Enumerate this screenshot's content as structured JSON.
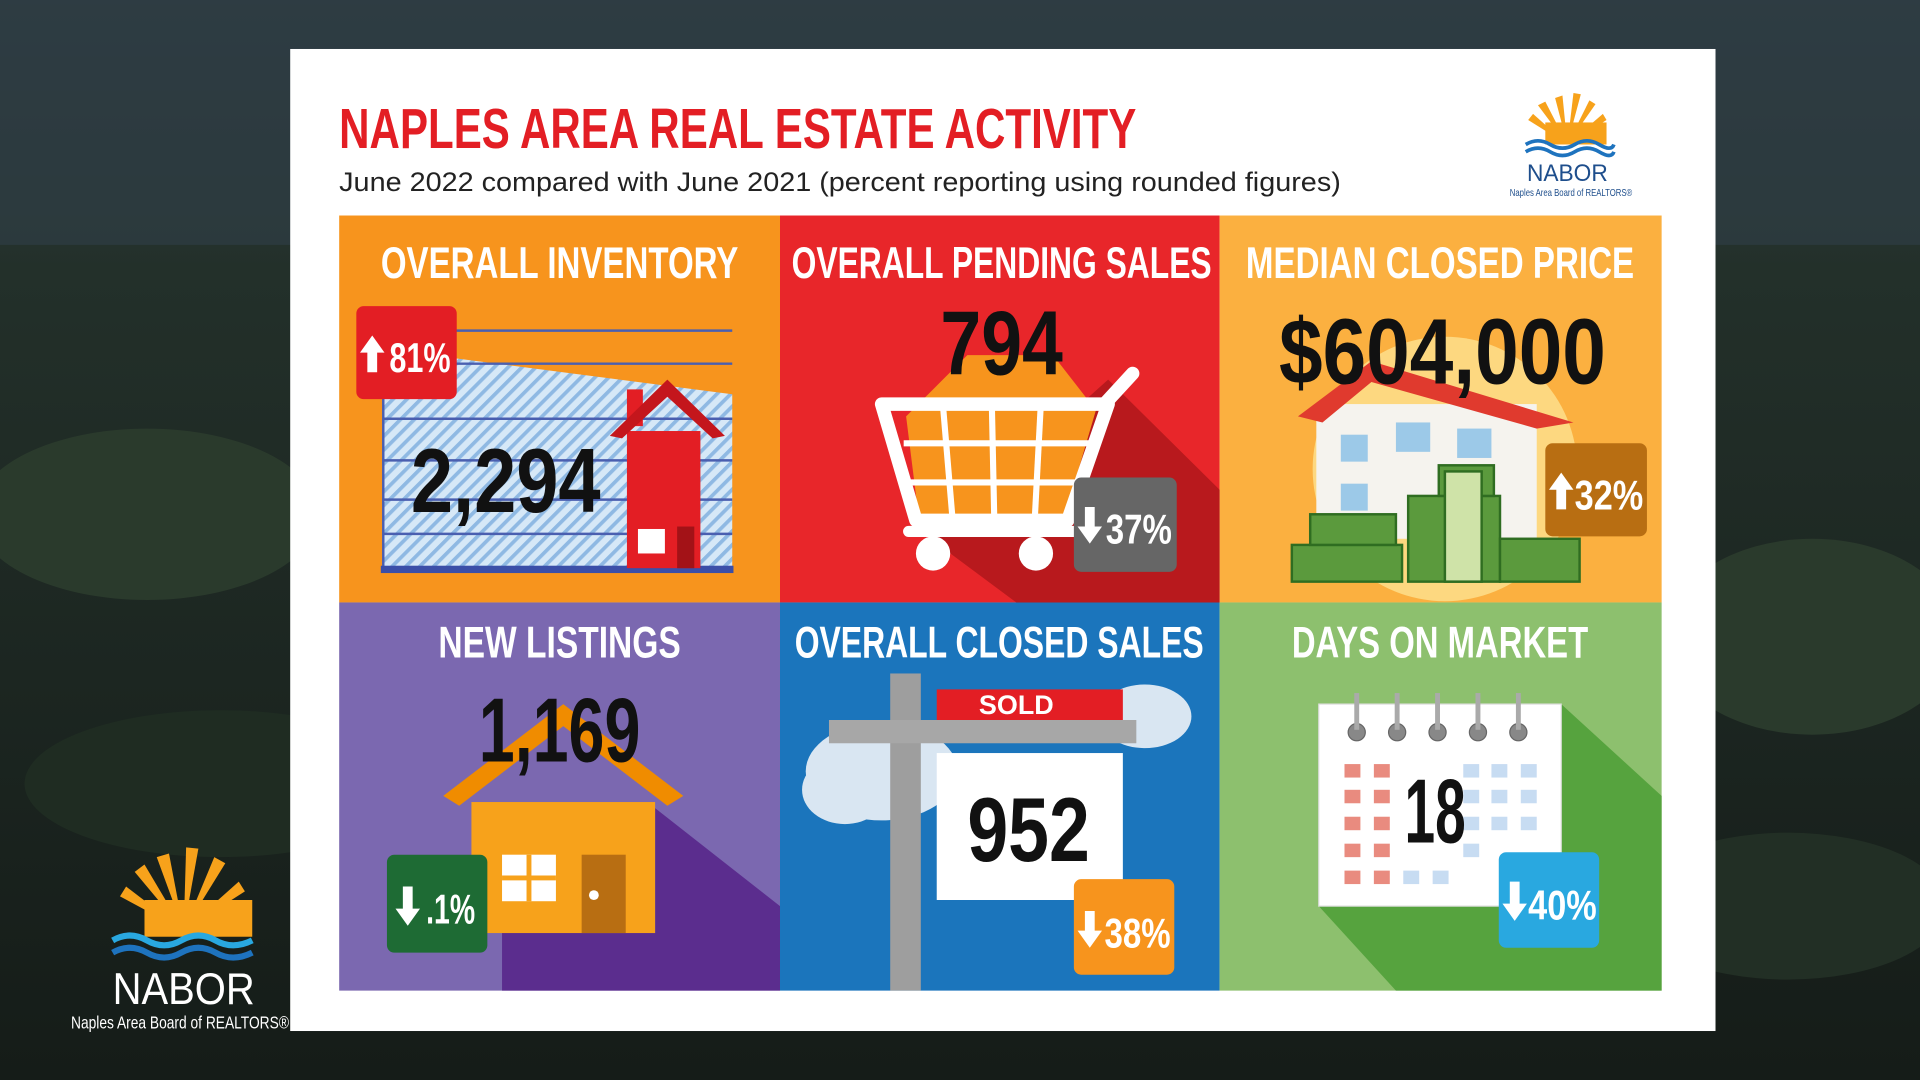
{
  "header": {
    "title": "NAPLES AREA REAL ESTATE ACTIVITY",
    "subtitle": "June 2022 compared with June 2021 (percent reporting using rounded figures)"
  },
  "logo": {
    "name": "NABOR",
    "full_name": "Naples Area Board of REALTORS®"
  },
  "tiles": [
    {
      "title": "OVERALL INVENTORY",
      "value": "2,294",
      "change": "81%"
    },
    {
      "title": "OVERALL PENDING SALES",
      "value": "794",
      "change": "37%"
    },
    {
      "title": "MEDIAN CLOSED PRICE",
      "value": "$604,000",
      "change": "32%"
    },
    {
      "title": "NEW LISTINGS",
      "value": "1,169",
      "change": ".1%"
    },
    {
      "title": "OVERALL CLOSED SALES",
      "value": "952",
      "change": "38%"
    },
    {
      "title": "DAYS ON MARKET",
      "value": "18",
      "change": "40%"
    }
  ],
  "sign": "SOLD"
}
